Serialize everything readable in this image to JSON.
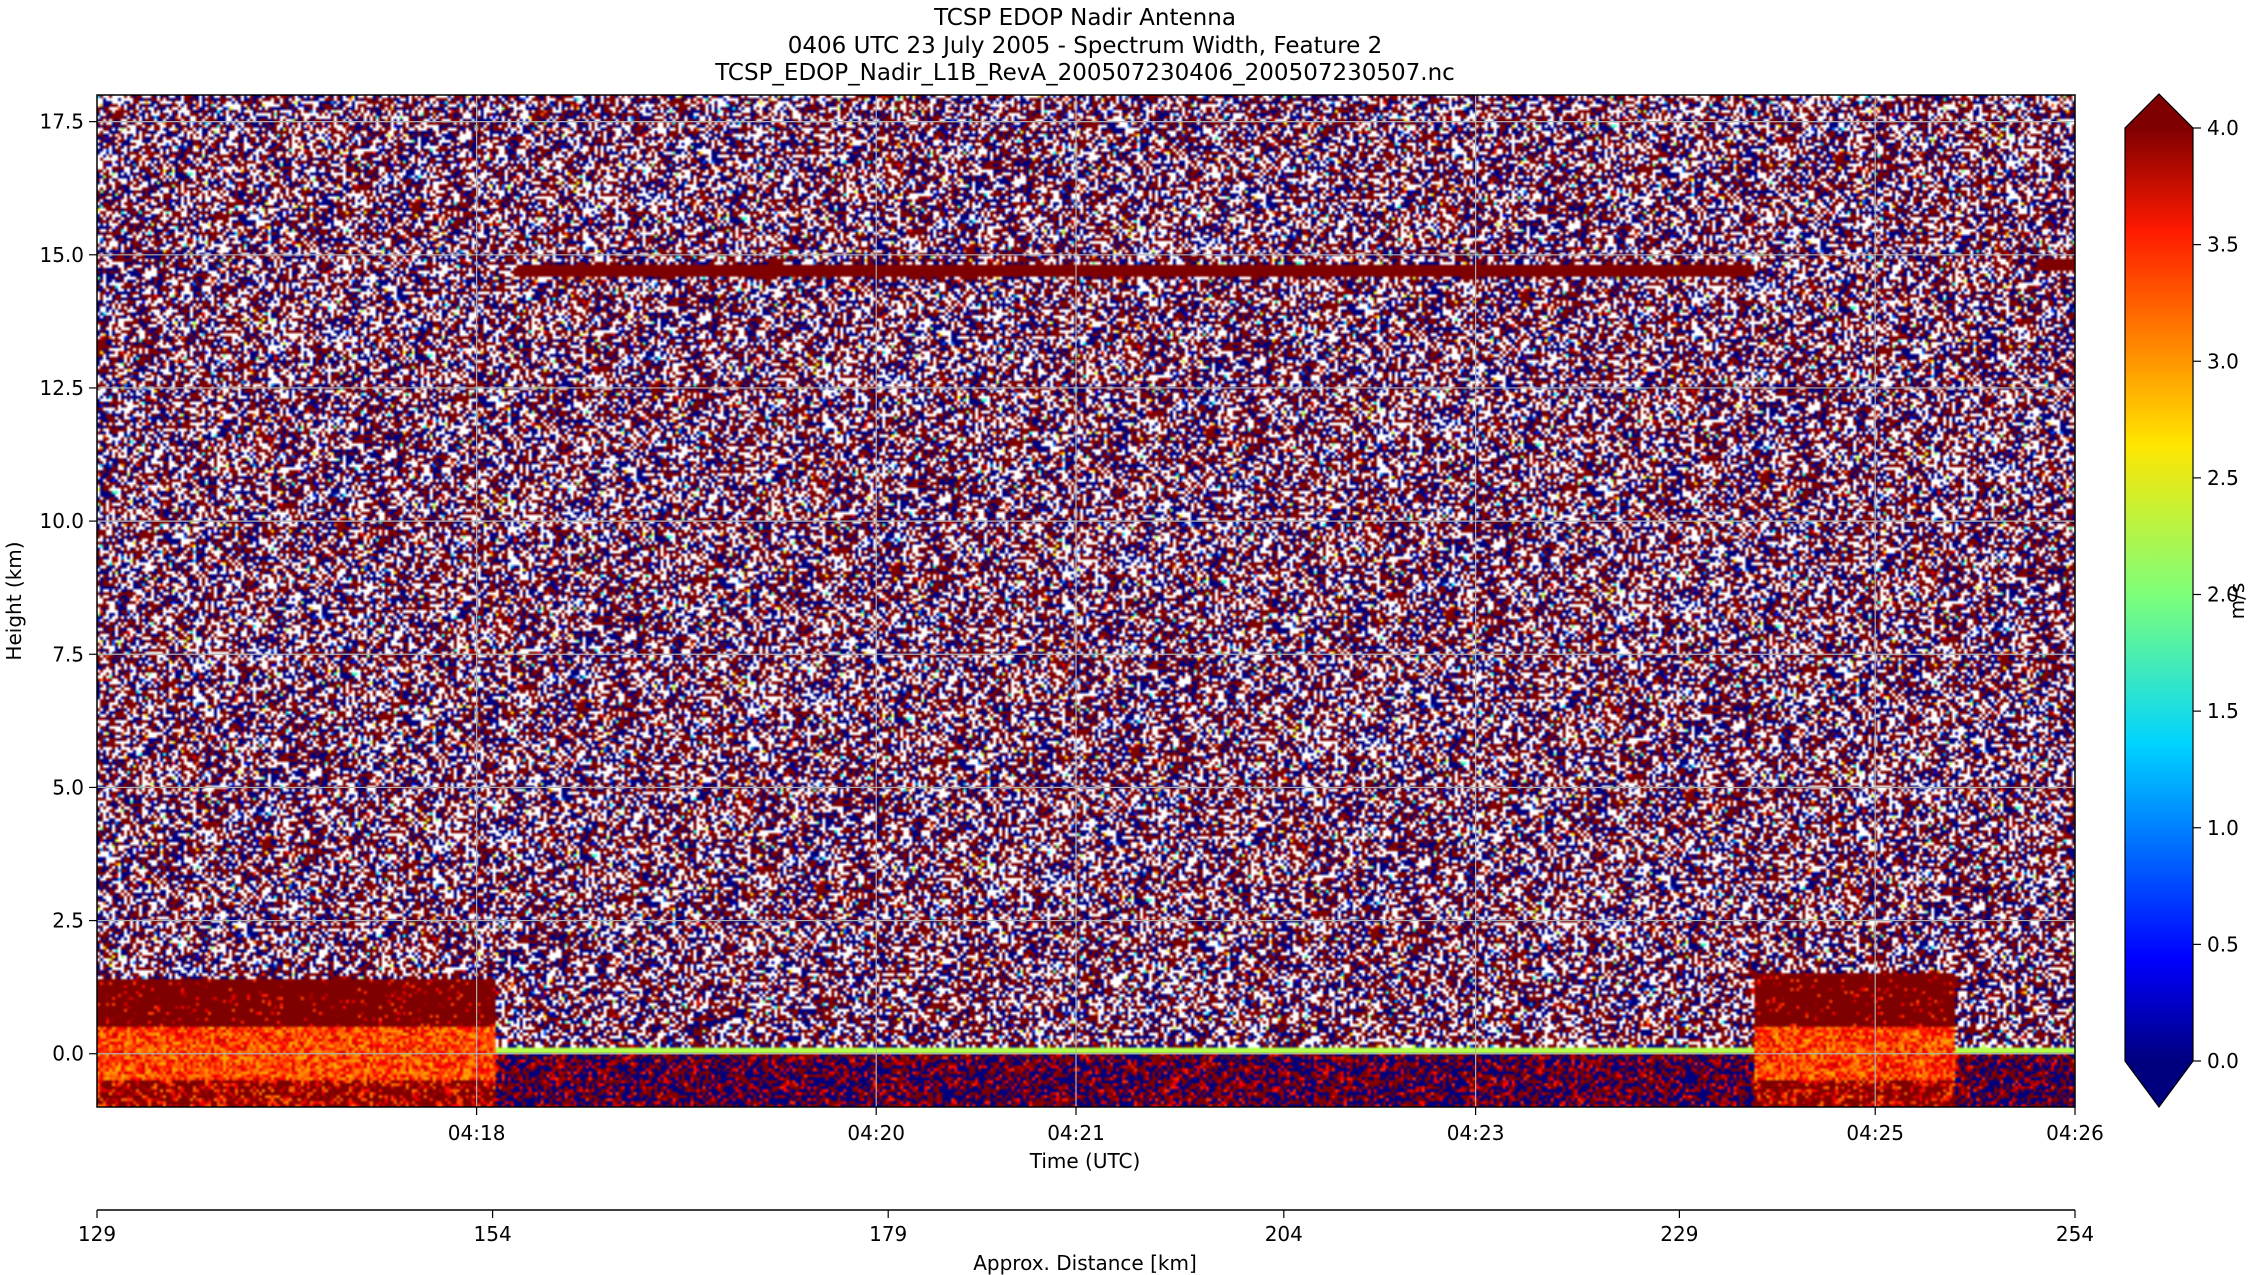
{
  "chart_data": {
    "type": "heatmap",
    "title_lines": [
      "TCSP EDOP Nadir Antenna",
      "0406 UTC 23 July 2005 - Spectrum Width, Feature 2",
      "TCSP_EDOP_Nadir_L1B_RevA_200507230406_200507230507.nc"
    ],
    "xlabel": "Time (UTC)",
    "ylabel": "Height (km)",
    "x2label": "Approx. Distance [km]",
    "colorbar_label": "m/s",
    "x_range_min": [
      1036.1,
      1046.0
    ],
    "ylim": [
      -1.0,
      18.0
    ],
    "x_ticks": [
      {
        "min": 1038.0,
        "label": "04:18"
      },
      {
        "min": 1040.0,
        "label": "04:20"
      },
      {
        "min": 1041.0,
        "label": "04:21"
      },
      {
        "min": 1043.0,
        "label": "04:23"
      },
      {
        "min": 1045.0,
        "label": "04:25"
      },
      {
        "min": 1046.0,
        "label": "04:26"
      }
    ],
    "y_ticks": [
      {
        "v": 0.0,
        "label": "0.0"
      },
      {
        "v": 2.5,
        "label": "2.5"
      },
      {
        "v": 5.0,
        "label": "5.0"
      },
      {
        "v": 7.5,
        "label": "7.5"
      },
      {
        "v": 10.0,
        "label": "10.0"
      },
      {
        "v": 12.5,
        "label": "12.5"
      },
      {
        "v": 15.0,
        "label": "15.0"
      },
      {
        "v": 17.5,
        "label": "17.5"
      }
    ],
    "distance_range_km": [
      129,
      254
    ],
    "distance_ticks": [
      {
        "v": 129,
        "label": "129"
      },
      {
        "v": 154,
        "label": "154"
      },
      {
        "v": 179,
        "label": "179"
      },
      {
        "v": 204,
        "label": "204"
      },
      {
        "v": 229,
        "label": "229"
      },
      {
        "v": 254,
        "label": "254"
      }
    ],
    "colorbar_range": [
      0.0,
      4.0
    ],
    "colorbar_extend": "both",
    "colorbar_ticks": [
      {
        "v": 0.0,
        "label": "0.0"
      },
      {
        "v": 0.5,
        "label": "0.5"
      },
      {
        "v": 1.0,
        "label": "1.0"
      },
      {
        "v": 1.5,
        "label": "1.5"
      },
      {
        "v": 2.0,
        "label": "2.0"
      },
      {
        "v": 2.5,
        "label": "2.5"
      },
      {
        "v": 3.0,
        "label": "3.0"
      },
      {
        "v": 3.5,
        "label": "3.5"
      },
      {
        "v": 4.0,
        "label": "4.0"
      }
    ],
    "colormap": "jet",
    "grid": true,
    "features": {
      "surface_echo_segments": [
        {
          "x_min": [
            1036.1,
            1038.1
          ],
          "top_km": 1.4,
          "bottom_km": -1.0,
          "width_ms": 3.8
        },
        {
          "x_min": [
            1044.4,
            1045.4
          ],
          "top_km": 1.5,
          "bottom_km": -1.0,
          "width_ms": 3.6
        }
      ],
      "upper_boundary_line": {
        "height_km": 14.7,
        "x_min": [
          1038.2,
          1044.4
        ],
        "width_ms": 4.0
      },
      "upper_boundary_line_2": {
        "height_km": 14.8,
        "x_min": [
          1045.8,
          1046.0
        ],
        "width_ms": 4.0
      },
      "low_band": {
        "height_km": [
          -1.0,
          0.0
        ],
        "width_ms": 0.3
      }
    }
  }
}
